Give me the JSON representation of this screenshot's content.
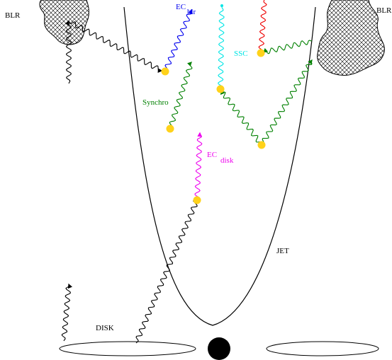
{
  "labels": {
    "blr_left": "BLR",
    "blr_right": "BLR",
    "ec": "EC",
    "blr_sub": "blr",
    "ssc": "SSC",
    "synchro": "Synchro",
    "ec_disk": "EC",
    "disk_sub": "disk",
    "jet": "JET",
    "disk": "DISK"
  },
  "colors": {
    "ec_blr": "#0000ee",
    "ssc": "#00e5e5",
    "ssc_red": "#ee0000",
    "synchro": "#008000",
    "ec_disk": "#ee00ee",
    "photon": "#000000",
    "electron": "#ffd21a",
    "cloud_fill": "#ffffff",
    "cloud_hatch": "#000000"
  },
  "icons": {
    "cloud": "blr-cloud-icon",
    "black_hole": "black-hole-icon",
    "electron": "electron-dot-icon"
  }
}
